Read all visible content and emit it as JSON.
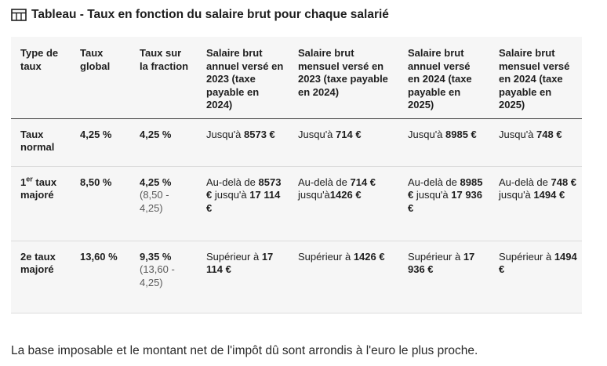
{
  "caption": "Tableau - Taux en fonction du salaire brut pour chaque salarié",
  "headers": [
    "Type de taux",
    "Taux global",
    "Taux sur la fraction",
    "Salaire brut annuel versé en 2023 (taxe payable en 2024)",
    "Salaire brut mensuel versé en 2023 (taxe payable en 2024)",
    "Salaire brut annuel versé en 2024 (taxe payable en 2025)",
    "Salaire brut mensuel versé en 2024 (taxe payable en 2025)"
  ],
  "rows": [
    {
      "type": "Taux normal",
      "global": "4,25 %",
      "fraction": "4,25 %",
      "fraction_detail": "",
      "c1": {
        "pre": "Jusqu'à ",
        "b1": "8573 €",
        "mid": "",
        "b2": ""
      },
      "c2": {
        "pre": "Jusqu'à ",
        "b1": "714 €",
        "mid": "",
        "b2": ""
      },
      "c3": {
        "pre": "Jusqu'à ",
        "b1": "8985 €",
        "mid": "",
        "b2": ""
      },
      "c4": {
        "pre": "Jusqu'à ",
        "b1": "748 €",
        "mid": "",
        "b2": ""
      }
    },
    {
      "type_sup_prefix": "1",
      "type_sup": "er",
      "type": " taux majoré",
      "global": "8,50 %",
      "fraction": "4,25 %",
      "fraction_detail": "(8,50 - 4,25)",
      "c1": {
        "pre": "Au-delà de ",
        "b1": "8573 €",
        "mid": " jusqu'à ",
        "b2": "17 114 €"
      },
      "c2": {
        "pre": "Au-delà de ",
        "b1": "714 €",
        "mid": " jusqu'à",
        "b2": "1426 €"
      },
      "c3": {
        "pre": "Au-delà de ",
        "b1": "8985 €",
        "mid": " jusqu'à ",
        "b2": "17 936 €"
      },
      "c4": {
        "pre": "Au-delà de ",
        "b1": "748 €",
        "mid": " jusqu'à ",
        "b2": "1494 €"
      }
    },
    {
      "type": "2e taux majoré",
      "global": "13,60 %",
      "fraction": "9,35 %",
      "fraction_detail": "(13,60 - 4,25)",
      "c1": {
        "pre": "Supérieur à ",
        "b1": "17 114 €",
        "mid": "",
        "b2": ""
      },
      "c2": {
        "pre": "Supérieur à ",
        "b1": "1426 €",
        "mid": "",
        "b2": ""
      },
      "c3": {
        "pre": "Supérieur à ",
        "b1": "17 936 €",
        "mid": "",
        "b2": ""
      },
      "c4": {
        "pre": "Supérieur à ",
        "b1": "1494 €",
        "mid": "",
        "b2": ""
      }
    }
  ],
  "footer": "La base imposable et le montant net de l'impôt dû sont arrondis à l'euro le plus proche."
}
